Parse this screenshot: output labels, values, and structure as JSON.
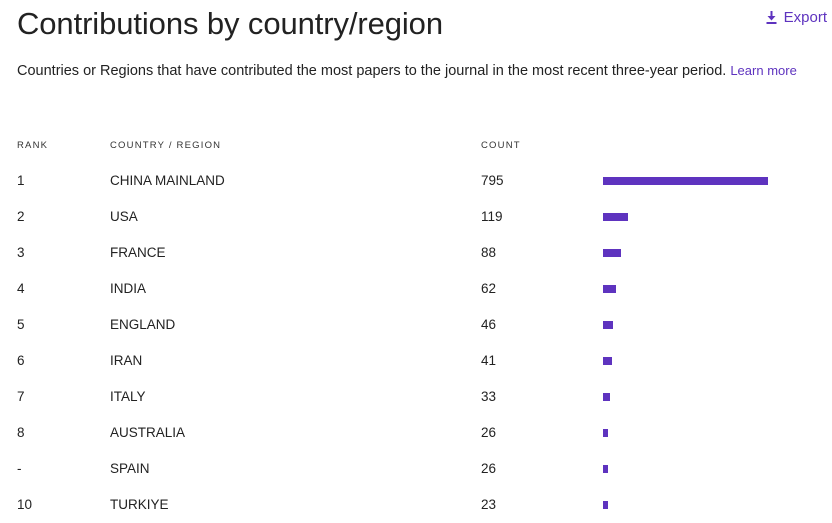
{
  "header": {
    "title": "Contributions by country/region",
    "export_label": "Export"
  },
  "description": {
    "text": "Countries or Regions that have contributed the most papers to the journal in the most recent three-year period.",
    "learn_more": "Learn more"
  },
  "table": {
    "columns": {
      "rank": "RANK",
      "country": "COUNTRY / REGION",
      "count": "COUNT"
    },
    "rows": [
      {
        "rank": "1",
        "country": "CHINA MAINLAND",
        "count": "795"
      },
      {
        "rank": "2",
        "country": "USA",
        "count": "119"
      },
      {
        "rank": "3",
        "country": "FRANCE",
        "count": "88"
      },
      {
        "rank": "4",
        "country": "INDIA",
        "count": "62"
      },
      {
        "rank": "5",
        "country": "ENGLAND",
        "count": "46"
      },
      {
        "rank": "6",
        "country": "IRAN",
        "count": "41"
      },
      {
        "rank": "7",
        "country": "ITALY",
        "count": "33"
      },
      {
        "rank": "8",
        "country": "AUSTRALIA",
        "count": "26"
      },
      {
        "rank": "-",
        "country": "SPAIN",
        "count": "26"
      },
      {
        "rank": "10",
        "country": "TURKIYE",
        "count": "23"
      }
    ]
  },
  "colors": {
    "accent": "#5e33bf"
  },
  "icons": {
    "export": "download-icon"
  }
}
